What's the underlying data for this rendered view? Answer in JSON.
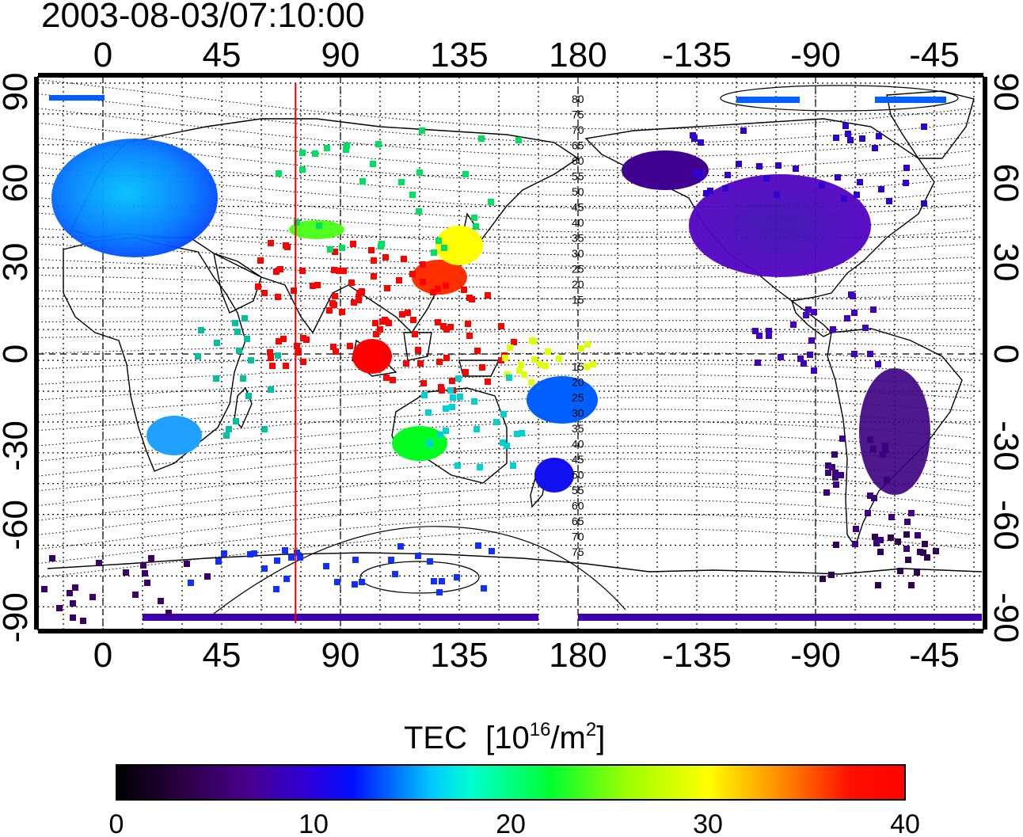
{
  "timestamp": "2003-08-03/07:10:00",
  "map": {
    "x_ticks": [
      "0",
      "45",
      "90",
      "135",
      "180",
      "-135",
      "-90",
      "-45"
    ],
    "y_ticks_left": [
      "90",
      "60",
      "30",
      "0",
      "-30",
      "-60",
      "-90"
    ],
    "y_ticks_right": [
      "90",
      "60",
      "30",
      "0",
      "-30",
      "-60",
      "-90"
    ],
    "contour_labels_upper": [
      "80",
      "75",
      "70",
      "65",
      "60",
      "55",
      "50",
      "45",
      "40",
      "35",
      "30",
      "25",
      "20",
      "15"
    ],
    "contour_labels_lower": [
      "15",
      "20",
      "25",
      "30",
      "35",
      "40",
      "45",
      "50",
      "55",
      "60",
      "65",
      "70",
      "75"
    ],
    "marker_line_longitude": 73,
    "marker_color": "#e00000"
  },
  "colorbar": {
    "title": "TEC",
    "unit_prefix": "[10",
    "unit_exp": "16",
    "unit_mid": "/m",
    "unit_exp2": "2",
    "unit_suffix": "]",
    "ticks": [
      "0",
      "10",
      "20",
      "30",
      "40"
    ],
    "colors": [
      "#000000",
      "#3a0068",
      "#5a00b8",
      "#0000ff",
      "#0070ff",
      "#00e0ff",
      "#00e060",
      "#00ff00",
      "#c8ff00",
      "#ffff00",
      "#ff8000",
      "#ff0000"
    ]
  }
}
